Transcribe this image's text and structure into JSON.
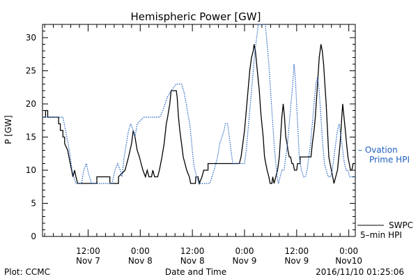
{
  "chart_data": {
    "type": "line",
    "title": "Hemispheric Power [GW]",
    "ylabel": "P [GW]",
    "xlabel": "Date and Time",
    "ylim": [
      0,
      32
    ],
    "y_ticks": [
      "0",
      "5",
      "10",
      "15",
      "20",
      "25",
      "30"
    ],
    "x_ticks": [
      {
        "t": 12,
        "line1": "12:00",
        "line2": "Nov 7"
      },
      {
        "t": 24,
        "line1": "0:00",
        "line2": "Nov 8"
      },
      {
        "t": 36,
        "line1": "12:00",
        "line2": "Nov 8"
      },
      {
        "t": 48,
        "line1": "0:00",
        "line2": "Nov 9"
      },
      {
        "t": 60,
        "line1": "12:00",
        "line2": "Nov 9"
      },
      {
        "t": 72,
        "line1": "0:00",
        "line2": "Nov10"
      }
    ],
    "x_range_hours": [
      1.5,
      73.5
    ],
    "series": [
      {
        "name": "SWPC 5-min HPI",
        "color": "#000000",
        "style": "solid",
        "points": [
          [
            1.5,
            18
          ],
          [
            2.2,
            18
          ],
          [
            2.2,
            19
          ],
          [
            2.7,
            19
          ],
          [
            2.7,
            18
          ],
          [
            5.2,
            18
          ],
          [
            5.2,
            17
          ],
          [
            5.6,
            17
          ],
          [
            5.6,
            16
          ],
          [
            6.2,
            16
          ],
          [
            6.2,
            15
          ],
          [
            6.6,
            15
          ],
          [
            6.6,
            14
          ],
          [
            7.3,
            13
          ],
          [
            7.6,
            12
          ],
          [
            7.9,
            11
          ],
          [
            8.2,
            10
          ],
          [
            8.5,
            9
          ],
          [
            8.9,
            10
          ],
          [
            9.2,
            9
          ],
          [
            9.6,
            8
          ],
          [
            12.5,
            8
          ],
          [
            12.5,
            8
          ],
          [
            14,
            8
          ],
          [
            14,
            9
          ],
          [
            17,
            9
          ],
          [
            17,
            8
          ],
          [
            19,
            8
          ],
          [
            19,
            9
          ],
          [
            20.5,
            10
          ],
          [
            21.3,
            12
          ],
          [
            22,
            14
          ],
          [
            22.4,
            16
          ],
          [
            22.8,
            15
          ],
          [
            23.3,
            13
          ],
          [
            23.8,
            12
          ],
          [
            24.2,
            11
          ],
          [
            24.6,
            10
          ],
          [
            25.2,
            9
          ],
          [
            25.6,
            10
          ],
          [
            26,
            9
          ],
          [
            26.6,
            9
          ],
          [
            26.9,
            10
          ],
          [
            27.3,
            9
          ],
          [
            28,
            9
          ],
          [
            28.4,
            10
          ],
          [
            29,
            12
          ],
          [
            29.5,
            14
          ],
          [
            30,
            17
          ],
          [
            30.3,
            18
          ],
          [
            30.8,
            20
          ],
          [
            31.1,
            22
          ],
          [
            32.3,
            22
          ],
          [
            32.5,
            21
          ],
          [
            32.8,
            18
          ],
          [
            33.1,
            16
          ],
          [
            33.5,
            14
          ],
          [
            33.9,
            12
          ],
          [
            34.3,
            11
          ],
          [
            34.7,
            10
          ],
          [
            35.3,
            9
          ],
          [
            35.6,
            8
          ],
          [
            36,
            8
          ],
          [
            36.7,
            8
          ],
          [
            36.8,
            9
          ],
          [
            37.3,
            9
          ],
          [
            37.6,
            8
          ],
          [
            38.2,
            9
          ],
          [
            38.6,
            10
          ],
          [
            39,
            10
          ],
          [
            39.6,
            10
          ],
          [
            39.6,
            11
          ],
          [
            46.8,
            11
          ],
          [
            47.2,
            12
          ],
          [
            47.6,
            14
          ],
          [
            48,
            16
          ],
          [
            48.4,
            19
          ],
          [
            48.8,
            22
          ],
          [
            49.2,
            25
          ],
          [
            49.6,
            27
          ],
          [
            50,
            28
          ],
          [
            50.2,
            29
          ],
          [
            50.5,
            28
          ],
          [
            50.8,
            26
          ],
          [
            51.1,
            24
          ],
          [
            51.4,
            22
          ],
          [
            51.7,
            19
          ],
          [
            52,
            17
          ],
          [
            52.3,
            15
          ],
          [
            52.6,
            12
          ],
          [
            52.9,
            11
          ],
          [
            53.2,
            10
          ],
          [
            53.6,
            9
          ],
          [
            53.9,
            8
          ],
          [
            54.3,
            8
          ],
          [
            54.5,
            9
          ],
          [
            54.8,
            8
          ],
          [
            55.2,
            9
          ],
          [
            55.6,
            10
          ],
          [
            56,
            12
          ],
          [
            56.3,
            15
          ],
          [
            56.6,
            18
          ],
          [
            56.9,
            20
          ],
          [
            57.2,
            18
          ],
          [
            57.5,
            15
          ],
          [
            57.8,
            14
          ],
          [
            58,
            13
          ],
          [
            58.3,
            12
          ],
          [
            58.6,
            12
          ],
          [
            58.9,
            11
          ],
          [
            59.2,
            11
          ],
          [
            59.5,
            10
          ],
          [
            60,
            10
          ],
          [
            60.2,
            11
          ],
          [
            60.8,
            11
          ],
          [
            60.8,
            12
          ],
          [
            63.3,
            12
          ],
          [
            63.6,
            14
          ],
          [
            64,
            16
          ],
          [
            64.3,
            18
          ],
          [
            64.6,
            21
          ],
          [
            64.9,
            24
          ],
          [
            65.2,
            27
          ],
          [
            65.4,
            28
          ],
          [
            65.6,
            29
          ],
          [
            65.9,
            28
          ],
          [
            66.2,
            26
          ],
          [
            66.5,
            23
          ],
          [
            66.8,
            20
          ],
          [
            67.1,
            16
          ],
          [
            67.4,
            12
          ],
          [
            67.7,
            11
          ],
          [
            68,
            10
          ],
          [
            68.3,
            9
          ],
          [
            68.6,
            8
          ],
          [
            69,
            9
          ],
          [
            69.4,
            10
          ],
          [
            69.7,
            12
          ],
          [
            70,
            14
          ],
          [
            70.3,
            17
          ],
          [
            70.6,
            20
          ],
          [
            70.9,
            18
          ],
          [
            71.2,
            16
          ],
          [
            71.5,
            14
          ],
          [
            71.8,
            12
          ],
          [
            72.1,
            11
          ],
          [
            72.4,
            10
          ],
          [
            72.7,
            10
          ],
          [
            73,
            11
          ],
          [
            73.5,
            11
          ]
        ]
      },
      {
        "name": "Ovation Prime HPI",
        "color": "#1f5fbf",
        "style": "dotted",
        "points": [
          [
            1.5,
            18
          ],
          [
            6.2,
            18
          ],
          [
            6.8,
            16
          ],
          [
            7.4,
            14
          ],
          [
            7.9,
            12
          ],
          [
            8.3,
            10
          ],
          [
            8.7,
            9
          ],
          [
            9.2,
            8
          ],
          [
            10.5,
            8
          ],
          [
            11,
            10
          ],
          [
            11.6,
            11
          ],
          [
            11.9,
            10
          ],
          [
            12.3,
            9
          ],
          [
            12.8,
            8
          ],
          [
            17.5,
            8
          ],
          [
            18.2,
            10
          ],
          [
            18.8,
            11
          ],
          [
            19.4,
            10
          ],
          [
            19.8,
            9
          ],
          [
            20.3,
            12
          ],
          [
            20.8,
            14
          ],
          [
            21.3,
            16
          ],
          [
            21.8,
            17
          ],
          [
            22.4,
            16
          ],
          [
            22.8,
            15
          ],
          [
            23.3,
            17
          ],
          [
            24.8,
            18
          ],
          [
            28.5,
            18
          ],
          [
            29.2,
            19
          ],
          [
            30.2,
            21
          ],
          [
            31.1,
            22
          ],
          [
            32.3,
            23
          ],
          [
            33.5,
            23
          ],
          [
            34,
            22
          ],
          [
            34.6,
            20
          ],
          [
            35.1,
            18
          ],
          [
            35.4,
            17
          ],
          [
            35.7,
            15
          ],
          [
            36,
            13
          ],
          [
            36.3,
            11
          ],
          [
            36.6,
            10
          ],
          [
            37,
            9
          ],
          [
            37.5,
            8
          ],
          [
            40,
            8
          ],
          [
            40.5,
            9
          ],
          [
            41,
            10
          ],
          [
            41.4,
            11
          ],
          [
            41.8,
            12
          ],
          [
            42.3,
            14
          ],
          [
            42.8,
            15
          ],
          [
            43.3,
            16
          ],
          [
            43.6,
            17
          ],
          [
            44.1,
            17
          ],
          [
            44.5,
            15
          ],
          [
            44.9,
            13
          ],
          [
            45.3,
            11
          ],
          [
            46.5,
            11
          ],
          [
            48,
            11
          ],
          [
            48.4,
            13
          ],
          [
            48.8,
            16
          ],
          [
            49.2,
            19
          ],
          [
            49.6,
            22
          ],
          [
            50,
            25
          ],
          [
            50.4,
            28
          ],
          [
            50.8,
            30
          ],
          [
            51.2,
            32
          ],
          [
            52.8,
            32
          ],
          [
            53.2,
            29
          ],
          [
            53.6,
            26
          ],
          [
            54,
            22
          ],
          [
            54.4,
            18
          ],
          [
            54.8,
            14
          ],
          [
            55.2,
            11
          ],
          [
            55.5,
            9
          ],
          [
            55.8,
            8
          ],
          [
            56.2,
            9
          ],
          [
            56.6,
            10
          ],
          [
            57.1,
            10
          ],
          [
            57.5,
            12
          ],
          [
            57.9,
            14
          ],
          [
            58.3,
            17
          ],
          [
            58.7,
            20
          ],
          [
            59.1,
            23
          ],
          [
            59.4,
            26
          ],
          [
            59.7,
            24
          ],
          [
            60,
            20
          ],
          [
            60.3,
            16
          ],
          [
            60.6,
            12
          ],
          [
            61.1,
            10
          ],
          [
            61.6,
            9
          ],
          [
            62,
            9
          ],
          [
            62.4,
            10
          ],
          [
            62.8,
            12
          ],
          [
            63.2,
            14
          ],
          [
            63.6,
            17
          ],
          [
            64,
            20
          ],
          [
            64.4,
            23
          ],
          [
            64.8,
            24
          ],
          [
            65.2,
            22
          ],
          [
            65.6,
            18
          ],
          [
            66,
            14
          ],
          [
            66.4,
            11
          ],
          [
            66.8,
            10
          ],
          [
            67.3,
            9
          ],
          [
            67.8,
            9
          ],
          [
            68.2,
            10
          ],
          [
            68.6,
            12
          ],
          [
            69,
            14
          ],
          [
            69.4,
            16
          ],
          [
            69.8,
            17
          ],
          [
            70.2,
            15
          ],
          [
            70.6,
            13
          ],
          [
            71,
            11
          ],
          [
            71.4,
            10
          ],
          [
            71.8,
            10
          ],
          [
            72.2,
            9
          ],
          [
            73.5,
            9
          ]
        ]
      }
    ],
    "legend": {
      "ovation_line1": "– Ovation",
      "ovation_line2": "Prime HPI",
      "swpc_line1": "SWPC",
      "swpc_line2": "5–min HPI"
    },
    "footer": {
      "left": "Plot: CCMC",
      "right": "2016/11/10 01:25:06"
    }
  }
}
